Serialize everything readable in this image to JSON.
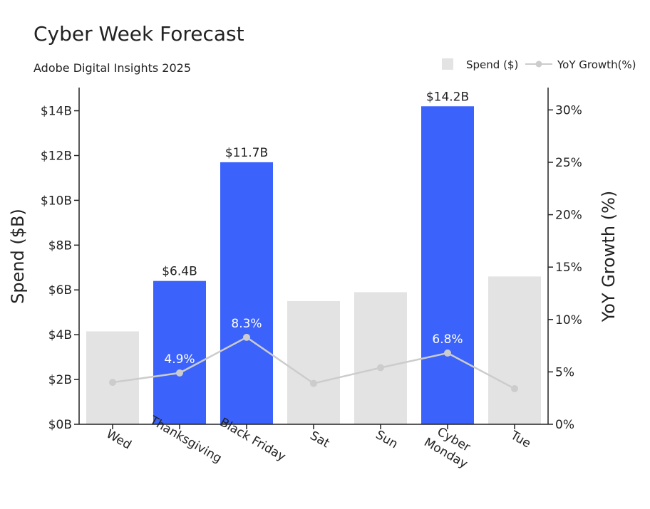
{
  "chart_data": {
    "type": "bar",
    "title": "Cyber Week Forecast",
    "subtitle": "Adobe Digital Insights 2025",
    "categories": [
      "Wed",
      "Thanksgiving",
      "Black Friday",
      "Sat",
      "Sun",
      "Cyber\nMonday",
      "Tue"
    ],
    "series": [
      {
        "name": "Spend ($)",
        "type": "bar",
        "axis": "left",
        "unit": "$B",
        "values": [
          4.15,
          6.4,
          11.7,
          5.5,
          5.9,
          14.2,
          6.6
        ],
        "labels": [
          "",
          "$6.4B",
          "$11.7B",
          "",
          "",
          "$14.2B",
          ""
        ]
      },
      {
        "name": "YoY Growth(%)",
        "type": "line",
        "axis": "right",
        "unit": "%",
        "values": [
          4.0,
          4.9,
          8.3,
          3.9,
          5.4,
          6.8,
          3.4
        ],
        "labels": [
          "",
          "4.9%",
          "8.3%",
          "",
          "",
          "6.8%",
          ""
        ]
      }
    ],
    "highlight": [
      false,
      true,
      true,
      false,
      false,
      true,
      false
    ],
    "ylabel": "Spend ($B)",
    "y2label": "YoY Growth (%)",
    "ylim": [
      0,
      15
    ],
    "y2lim": [
      0,
      32
    ],
    "yticks": [
      0,
      2,
      4,
      6,
      8,
      10,
      12,
      14
    ],
    "ytick_labels": [
      "$0B",
      "$2B",
      "$4B",
      "$6B",
      "$8B",
      "$10B",
      "$12B",
      "$14B"
    ],
    "y2ticks": [
      0,
      5,
      10,
      15,
      20,
      25,
      30
    ],
    "y2tick_labels": [
      "0%",
      "5%",
      "10%",
      "15%",
      "20%",
      "25%",
      "30%"
    ],
    "legend": [
      "Spend ($)",
      "YoY Growth(%)"
    ],
    "legend_position": "top-right",
    "grid": false,
    "colors": {
      "highlight_bar": "#3b63fb",
      "normal_bar": "#e3e3e3",
      "line": "#cccccc",
      "axis": "#222222"
    }
  }
}
